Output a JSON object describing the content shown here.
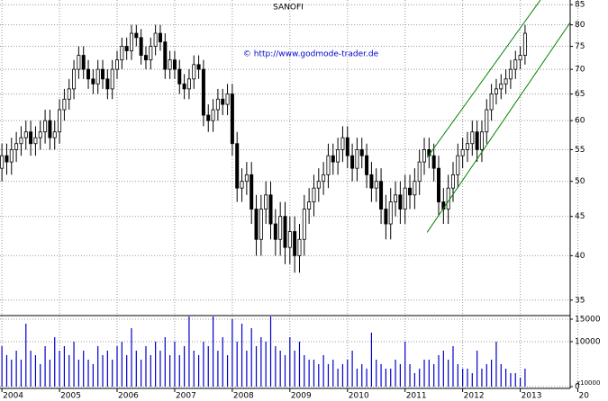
{
  "chart_data": {
    "type": "candlestick",
    "title": "SANOFI",
    "subtitle": "© http://www.godmode-trader.de",
    "log_scale": true,
    "grid": true,
    "open": [
      52,
      54,
      53,
      55,
      56,
      57,
      58,
      56,
      57,
      58,
      60,
      57,
      58,
      62,
      64,
      66,
      70,
      73,
      70,
      68,
      67,
      70,
      68,
      66,
      70,
      72,
      75,
      74,
      78,
      77,
      73,
      72,
      75,
      78,
      76,
      70,
      72,
      70,
      67,
      66,
      68,
      71,
      70,
      61,
      60,
      62,
      64,
      63,
      65,
      56,
      49,
      50,
      51,
      46,
      42,
      46,
      48,
      44,
      42,
      45,
      41,
      43,
      40,
      42,
      46,
      47,
      49,
      50,
      51,
      54,
      53,
      55,
      57,
      54,
      52,
      55,
      54,
      51,
      49,
      50,
      46,
      44,
      47,
      48,
      46,
      49,
      48,
      50,
      53,
      55,
      54,
      52,
      47,
      46,
      49,
      51,
      54,
      55,
      56,
      58,
      55,
      58,
      62,
      65,
      66,
      67,
      68,
      70,
      72,
      73
    ],
    "high": [
      56,
      56,
      57,
      58,
      59,
      60,
      60,
      59,
      60,
      62,
      62,
      60,
      64,
      66,
      68,
      72,
      75,
      75,
      72,
      70,
      72,
      72,
      70,
      72,
      74,
      77,
      77,
      80,
      80,
      79,
      75,
      77,
      80,
      80,
      78,
      74,
      74,
      72,
      69,
      70,
      73,
      73,
      72,
      63,
      64,
      66,
      66,
      67,
      67,
      58,
      52,
      53,
      53,
      48,
      48,
      50,
      50,
      46,
      47,
      47,
      45,
      45,
      44,
      48,
      49,
      51,
      52,
      53,
      56,
      56,
      57,
      59,
      59,
      56,
      57,
      57,
      56,
      53,
      52,
      52,
      48,
      49,
      50,
      50,
      51,
      51,
      52,
      55,
      57,
      57,
      56,
      54,
      49,
      51,
      53,
      56,
      57,
      58,
      60,
      60,
      60,
      64,
      67,
      68,
      69,
      70,
      72,
      74,
      75,
      80
    ],
    "low": [
      50,
      51,
      51,
      53,
      54,
      55,
      54,
      54,
      55,
      56,
      55,
      55,
      56,
      60,
      62,
      64,
      68,
      68,
      66,
      65,
      65,
      66,
      64,
      64,
      68,
      70,
      72,
      72,
      75,
      71,
      70,
      70,
      73,
      74,
      68,
      68,
      68,
      65,
      64,
      64,
      66,
      68,
      59,
      58,
      58,
      60,
      61,
      61,
      54,
      47,
      47,
      48,
      44,
      40,
      40,
      44,
      42,
      40,
      40,
      39,
      39,
      38,
      38,
      40,
      44,
      45,
      47,
      48,
      49,
      51,
      51,
      53,
      52,
      50,
      50,
      52,
      49,
      47,
      47,
      44,
      42,
      42,
      45,
      44,
      44,
      46,
      46,
      48,
      51,
      52,
      50,
      45,
      44,
      44,
      47,
      49,
      52,
      53,
      54,
      53,
      53,
      56,
      60,
      63,
      64,
      65,
      66,
      68,
      70,
      71
    ],
    "close": [
      54,
      53,
      55,
      56,
      57,
      58,
      56,
      57,
      58,
      60,
      57,
      58,
      62,
      64,
      66,
      70,
      73,
      70,
      68,
      67,
      70,
      68,
      66,
      70,
      72,
      75,
      74,
      78,
      77,
      73,
      72,
      75,
      78,
      76,
      70,
      72,
      70,
      67,
      66,
      68,
      71,
      70,
      61,
      60,
      62,
      64,
      63,
      65,
      56,
      49,
      50,
      51,
      46,
      42,
      46,
      48,
      44,
      42,
      45,
      41,
      43,
      40,
      42,
      46,
      47,
      49,
      50,
      51,
      54,
      53,
      55,
      57,
      54,
      52,
      55,
      54,
      51,
      49,
      50,
      46,
      44,
      47,
      48,
      46,
      49,
      48,
      50,
      53,
      55,
      54,
      52,
      47,
      46,
      49,
      51,
      54,
      55,
      56,
      58,
      55,
      58,
      62,
      65,
      66,
      67,
      68,
      70,
      72,
      73,
      78
    ],
    "volume": [
      9000,
      7000,
      6000,
      8000,
      6000,
      14000,
      8000,
      7000,
      5000,
      9000,
      6000,
      11000,
      8000,
      9000,
      7000,
      10000,
      6000,
      8000,
      6000,
      5000,
      9000,
      7000,
      8000,
      6000,
      9000,
      10000,
      7000,
      13000,
      8000,
      6000,
      9000,
      7000,
      10000,
      8000,
      11000,
      7000,
      10000,
      7000,
      9000,
      20000,
      8000,
      7000,
      10000,
      9000,
      16000,
      8000,
      11000,
      7000,
      15000,
      10000,
      14000,
      8000,
      13000,
      9000,
      11000,
      10000,
      22000,
      9000,
      8000,
      7000,
      11000,
      8000,
      10000,
      7000,
      6000,
      6000,
      5000,
      7000,
      5000,
      6000,
      4000,
      5000,
      6000,
      8000,
      4000,
      5000,
      4000,
      12000,
      6000,
      5000,
      4000,
      4000,
      6000,
      5000,
      10000,
      5000,
      3000,
      4000,
      6000,
      6000,
      5000,
      7000,
      8000,
      6000,
      9000,
      5000,
      4000,
      4000,
      3000,
      8000,
      4000,
      5000,
      6000,
      10000,
      5000,
      4000,
      3000,
      3000,
      2000,
      4000
    ],
    "volume_color": "#0000cc",
    "volume_unit": "x10000",
    "xlim": [
      -0.4,
      118.4
    ],
    "xticks": [
      {
        "value": 0,
        "label": "2004"
      },
      {
        "value": 12,
        "label": "2005"
      },
      {
        "value": 24,
        "label": "2006"
      },
      {
        "value": 36,
        "label": "2007"
      },
      {
        "value": 48,
        "label": "2008"
      },
      {
        "value": 60,
        "label": "2009"
      },
      {
        "value": 72,
        "label": "2010"
      },
      {
        "value": 84,
        "label": "2011"
      },
      {
        "value": 96,
        "label": "2012"
      },
      {
        "value": 108,
        "label": "2013"
      },
      {
        "value": 120,
        "label": "20"
      }
    ],
    "ylim": [
      33.5,
      86.2
    ],
    "yticks": [
      35,
      40,
      45,
      50,
      55,
      60,
      65,
      70,
      75,
      80,
      85
    ],
    "y2lim": [
      0,
      15600
    ],
    "y2ticks": [
      0,
      10000,
      15000
    ],
    "channels": [
      {
        "start": [
          88.6,
          53.7
        ],
        "end": [
          112.2,
          86.2
        ],
        "color": "#008000"
      },
      {
        "start": [
          88.6,
          42.9
        ],
        "end": [
          119.7,
          82.8
        ],
        "color": "#008000"
      }
    ]
  }
}
